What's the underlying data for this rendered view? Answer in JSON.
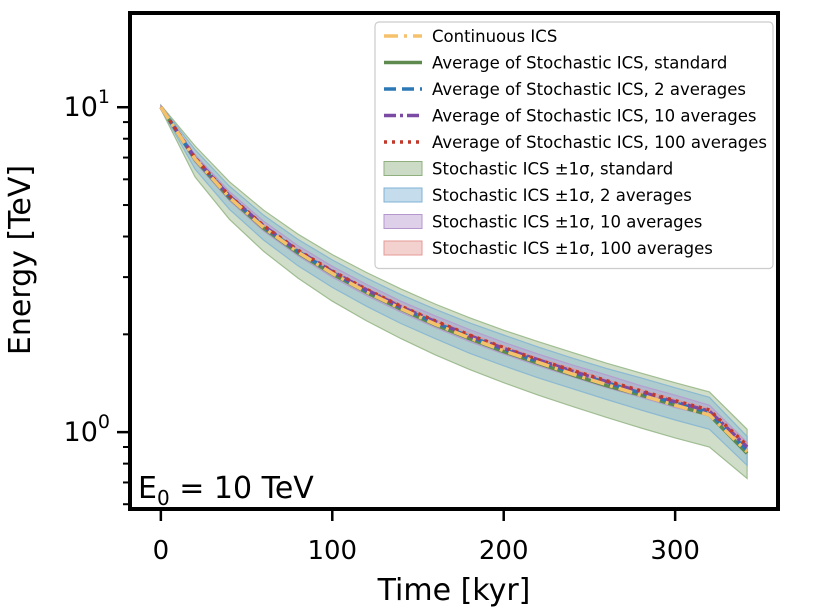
{
  "chart_data": {
    "type": "line",
    "xlabel": "Time [kyr]",
    "ylabel": "Energy [TeV]",
    "x_scale": "linear",
    "y_scale": "log",
    "xlim": [
      -18,
      360
    ],
    "ylim": [
      0.58,
      19.5
    ],
    "x_ticks": [
      0,
      100,
      200,
      300
    ],
    "x_tick_labels": [
      "0",
      "100",
      "200",
      "300"
    ],
    "y_major_ticks": [
      {
        "value": 1,
        "base": "10",
        "exp": "0"
      },
      {
        "value": 10,
        "base": "10",
        "exp": "1"
      }
    ],
    "y_minor_ticks": [
      0.6,
      0.7,
      0.8,
      0.9,
      2,
      3,
      4,
      5,
      6,
      7,
      8,
      9
    ],
    "annotation": {
      "base": "E",
      "sub": "0",
      "rest": " = 10 TeV"
    },
    "x": [
      0,
      20,
      40,
      60,
      80,
      100,
      120,
      140,
      160,
      180,
      200,
      220,
      240,
      260,
      280,
      300,
      320,
      342
    ],
    "series": [
      {
        "name": "Continuous ICS",
        "color": "#F5C26B",
        "dash": "dashdot-long",
        "values": [
          10.0,
          6.93,
          5.28,
          4.26,
          3.58,
          3.08,
          2.7,
          2.4,
          2.15,
          1.95,
          1.78,
          1.64,
          1.51,
          1.4,
          1.3,
          1.21,
          1.13,
          0.87
        ]
      },
      {
        "name": "Average of Stochastic ICS, standard",
        "color": "#5E8A4F",
        "dash": "solid",
        "values": [
          10.0,
          6.9,
          5.26,
          4.24,
          3.56,
          3.07,
          2.69,
          2.39,
          2.14,
          1.94,
          1.77,
          1.63,
          1.5,
          1.39,
          1.3,
          1.21,
          1.13,
          0.86
        ]
      },
      {
        "name": "Average of Stochastic ICS, 2 averages",
        "color": "#2A78B5",
        "dash": "dashed",
        "values": [
          10.0,
          6.95,
          5.31,
          4.29,
          3.6,
          3.1,
          2.72,
          2.42,
          2.17,
          1.97,
          1.8,
          1.65,
          1.53,
          1.42,
          1.32,
          1.23,
          1.15,
          0.88
        ]
      },
      {
        "name": "Average of Stochastic ICS, 10 averages",
        "color": "#7B4AA5",
        "dash": "dashdot",
        "values": [
          10.0,
          6.97,
          5.33,
          4.31,
          3.62,
          3.12,
          2.74,
          2.43,
          2.19,
          1.98,
          1.81,
          1.67,
          1.54,
          1.43,
          1.33,
          1.24,
          1.16,
          0.9
        ]
      },
      {
        "name": "Average of Stochastic ICS, 100 averages",
        "color": "#C0392B",
        "dash": "dotted",
        "values": [
          10.0,
          6.98,
          5.34,
          4.32,
          3.63,
          3.13,
          2.75,
          2.44,
          2.2,
          1.99,
          1.82,
          1.67,
          1.55,
          1.44,
          1.34,
          1.25,
          1.17,
          0.91
        ]
      }
    ],
    "bands": [
      {
        "name": "Stochastic ICS ±1σ, standard",
        "color": "#8FB07E",
        "lower": [
          9.85,
          6.1,
          4.52,
          3.6,
          2.98,
          2.53,
          2.2,
          1.94,
          1.73,
          1.56,
          1.42,
          1.3,
          1.2,
          1.11,
          1.03,
          0.96,
          0.9,
          0.72
        ],
        "upper": [
          10.15,
          7.6,
          5.9,
          4.82,
          4.07,
          3.52,
          3.1,
          2.76,
          2.48,
          2.25,
          2.06,
          1.9,
          1.76,
          1.63,
          1.52,
          1.42,
          1.33,
          1.02
        ]
      },
      {
        "name": "Stochastic ICS ±1σ, 2 averages",
        "color": "#7FB2D4",
        "lower": [
          9.9,
          6.45,
          4.85,
          3.9,
          3.25,
          2.79,
          2.44,
          2.16,
          1.94,
          1.75,
          1.6,
          1.47,
          1.36,
          1.26,
          1.17,
          1.09,
          1.02,
          0.79
        ],
        "upper": [
          10.1,
          7.4,
          5.72,
          4.65,
          3.92,
          3.39,
          2.98,
          2.65,
          2.39,
          2.17,
          1.99,
          1.83,
          1.69,
          1.57,
          1.47,
          1.37,
          1.28,
          0.97
        ]
      },
      {
        "name": "Stochastic ICS ±1σ, 10 averages",
        "color": "#B596CF",
        "lower": [
          9.95,
          6.78,
          5.16,
          4.16,
          3.49,
          3.0,
          2.63,
          2.34,
          2.1,
          1.9,
          1.74,
          1.6,
          1.48,
          1.37,
          1.28,
          1.19,
          1.12,
          0.86
        ],
        "upper": [
          10.05,
          7.15,
          5.5,
          4.46,
          3.75,
          3.24,
          2.85,
          2.53,
          2.28,
          2.07,
          1.89,
          1.74,
          1.61,
          1.5,
          1.39,
          1.3,
          1.21,
          0.93
        ]
      },
      {
        "name": "Stochastic ICS ±1σ, 100 averages",
        "color": "#E49A94",
        "lower": [
          9.98,
          6.92,
          5.29,
          4.27,
          3.59,
          3.09,
          2.71,
          2.41,
          2.17,
          1.96,
          1.79,
          1.65,
          1.53,
          1.42,
          1.32,
          1.23,
          1.15,
          0.89
        ],
        "upper": [
          10.02,
          7.03,
          5.38,
          4.36,
          3.66,
          3.16,
          2.78,
          2.47,
          2.22,
          2.01,
          1.84,
          1.69,
          1.57,
          1.45,
          1.35,
          1.26,
          1.18,
          0.92
        ]
      }
    ],
    "legend_placement": "top-right"
  }
}
